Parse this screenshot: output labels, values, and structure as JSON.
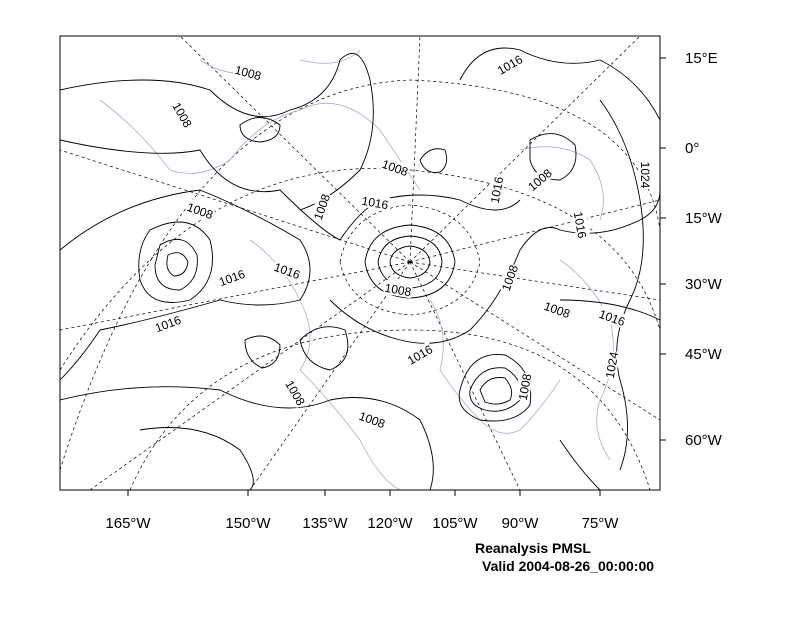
{
  "map": {
    "right_axis_labels": [
      "15°E",
      "0°",
      "15°W",
      "30°W",
      "45°W",
      "60°W"
    ],
    "bottom_axis_labels": [
      "165°W",
      "150°W",
      "135°W",
      "120°W",
      "105°W",
      "90°W",
      "75°W"
    ],
    "contour_labels": [
      1008,
      1008,
      1016,
      1008,
      1016,
      1016,
      1008,
      1024,
      1008,
      1008,
      1016,
      1016,
      1016,
      1008,
      1008,
      1016,
      1008,
      1016,
      1024,
      1016,
      1008,
      1008,
      1008
    ],
    "caption": {
      "title": "Reanalysis PMSL",
      "valid": "Valid 2004-08-26_00:00:00"
    }
  }
}
